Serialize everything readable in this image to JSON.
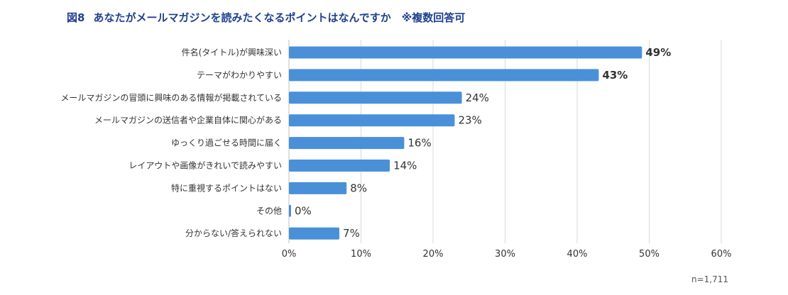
{
  "figure": {
    "number": "図8",
    "title": "あなたがメールマガジンを読みたくなるポイントはなんですか　※複数回答可"
  },
  "note": "n=1,711",
  "colors": {
    "bar": "#4a90d9",
    "title": "#1f3f8f",
    "grid": "#d9d9d9"
  },
  "chart_data": {
    "type": "bar",
    "orientation": "horizontal",
    "categories": [
      "件名(タイトル)が興味深い",
      "テーマがわかりやすい",
      "メールマガジンの冒頭に興味のある情報が掲載されている",
      "メールマガジンの送信者や企業自体に関心がある",
      "ゆっくり過ごせる時間に届く",
      "レイアウトや画像がきれいで読みやすい",
      "特に重視するポイントはない",
      "その他",
      "分からない/答えられない"
    ],
    "values": [
      49,
      43,
      24,
      23,
      16,
      14,
      8,
      0,
      7
    ],
    "value_labels": [
      "49%",
      "43%",
      "24%",
      "23%",
      "16%",
      "14%",
      "8%",
      "0%",
      "7%"
    ],
    "bold_labels": [
      true,
      true,
      false,
      false,
      false,
      false,
      false,
      false,
      false
    ],
    "xlim": [
      0,
      60
    ],
    "xticks": [
      0,
      10,
      20,
      30,
      40,
      50,
      60
    ],
    "xtick_labels": [
      "0%",
      "10%",
      "20%",
      "30%",
      "40%",
      "50%",
      "60%"
    ],
    "grid": true,
    "legend": "none"
  }
}
